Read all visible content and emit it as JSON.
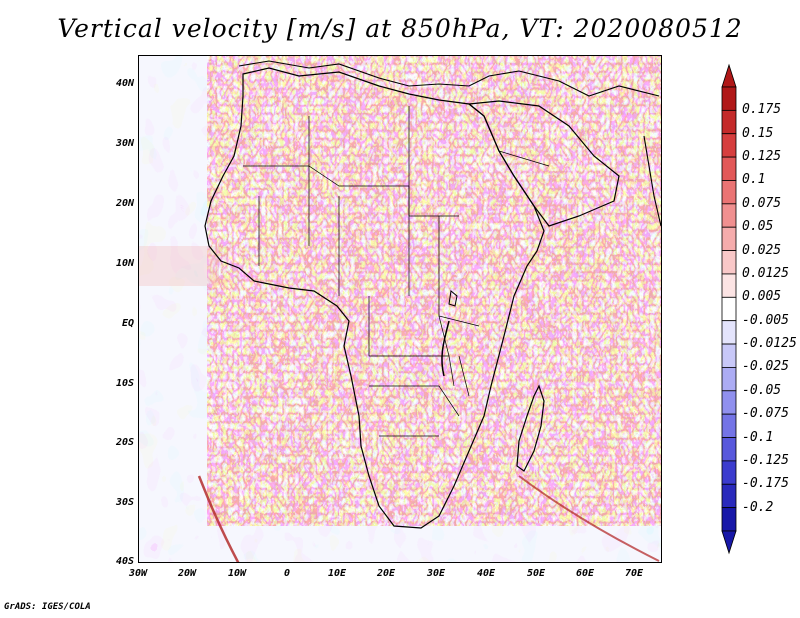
{
  "title": "Vertical velocity [m/s] at 850hPa, VT: 2020080512",
  "footer": "GrADS: IGES/COLA",
  "lat_labels": [
    "40N",
    "30N",
    "20N",
    "10N",
    "EQ",
    "10S",
    "20S",
    "30S",
    "40S"
  ],
  "lon_labels": [
    "30W",
    "20W",
    "10W",
    "0",
    "10E",
    "20E",
    "30E",
    "40E",
    "50E",
    "60E",
    "70E"
  ],
  "colorbar": {
    "labels": [
      "0.175",
      "0.15",
      "0.125",
      "0.1",
      "0.075",
      "0.05",
      "0.025",
      "0.0125",
      "0.005",
      "-0.005",
      "-0.0125",
      "-0.025",
      "-0.05",
      "-0.075",
      "-0.1",
      "-0.125",
      "-0.175",
      "-0.2"
    ],
    "colors": [
      "#b01818",
      "#c42a2a",
      "#d63e3e",
      "#e25858",
      "#ea7474",
      "#f09090",
      "#f5acac",
      "#f9c8c8",
      "#fce4e4",
      "#ffffff",
      "#e4e4fc",
      "#c8c8f8",
      "#acacf4",
      "#9090ee",
      "#7474e6",
      "#5858dc",
      "#3c3cce",
      "#2a2abc",
      "#1818a8"
    ]
  }
}
